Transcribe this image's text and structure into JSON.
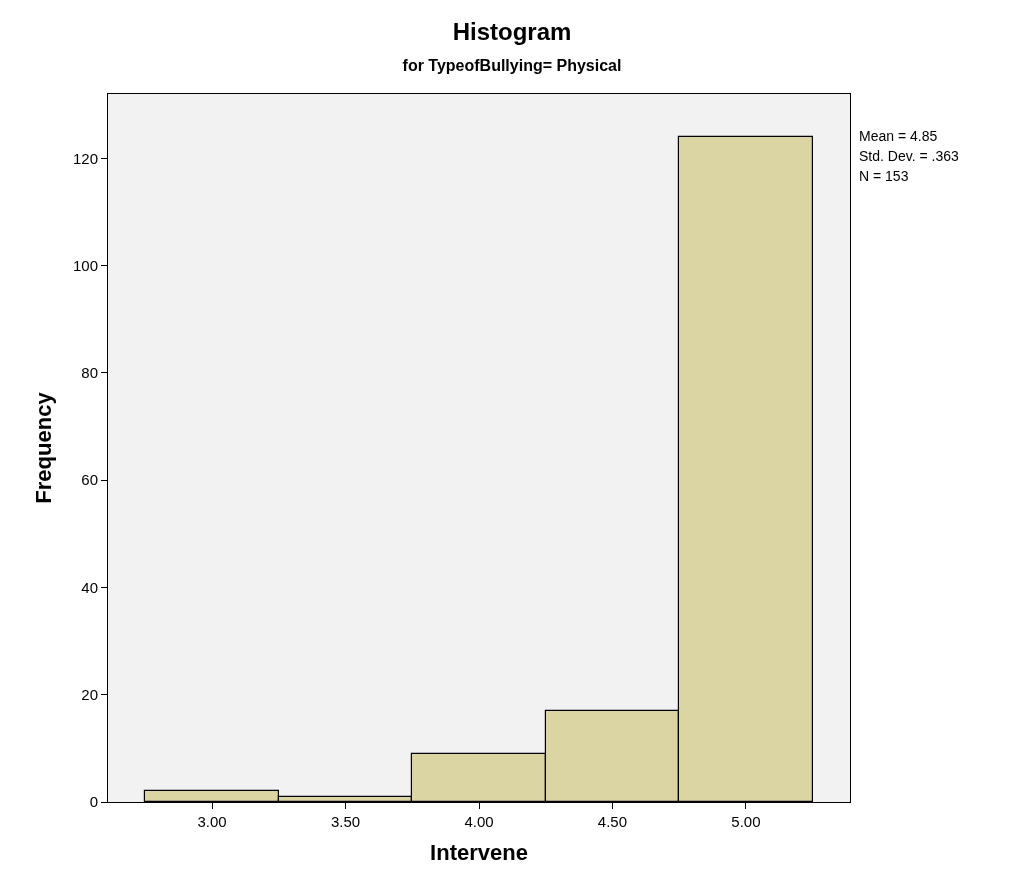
{
  "chart_data": {
    "type": "histogram",
    "title": "Histogram",
    "subtitle": "for TypeofBullying= Physical",
    "xlabel": "Intervene",
    "ylabel": "Frequency",
    "bins": [
      2.75,
      3.25,
      3.75,
      4.25,
      4.75,
      5.25
    ],
    "values": [
      2,
      1,
      9,
      17,
      124
    ],
    "color": "#dbd4a3",
    "xlim": [
      2.61,
      5.39
    ],
    "xticks": [
      {
        "value": 3,
        "label": "3.00"
      },
      {
        "value": 3.5,
        "label": "3.50"
      },
      {
        "value": 4,
        "label": "4.00"
      },
      {
        "value": 4.5,
        "label": "4.50"
      },
      {
        "value": 5,
        "label": "5.00"
      }
    ],
    "ylim": [
      0,
      132
    ],
    "yticks": [
      0,
      20,
      40,
      60,
      80,
      100,
      120
    ],
    "grid": false,
    "annotations": [
      "Mean = 4.85",
      "Std. Dev. = .363",
      "N = 153"
    ]
  }
}
